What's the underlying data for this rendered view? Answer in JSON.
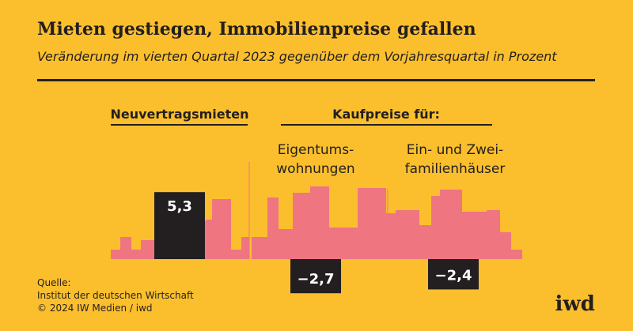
{
  "chart_data": {
    "type": "bar",
    "title": "Mieten gestiegen, Immobilienpreise gefallen",
    "subtitle": "Veränderung im vierten Quartal 2023 gegenüber dem Vorjahresquartal in Prozent",
    "group_label": "Kaufpreise für:",
    "categories": [
      "Neuvertragsmieten",
      "Eigentums-\nwohnungen",
      "Ein- und Zwei-\nfamilienhäuser"
    ],
    "values": [
      5.3,
      -2.7,
      -2.4
    ],
    "value_labels": [
      "5,3",
      "−2,7",
      "−2,4"
    ],
    "color": "#231f20"
  },
  "footer": {
    "source_label": "Quelle:",
    "source": "Institut der deutschen Wirtschaft",
    "copyright": "© 2024 IW Medien / iwd",
    "logo": "iwd"
  }
}
